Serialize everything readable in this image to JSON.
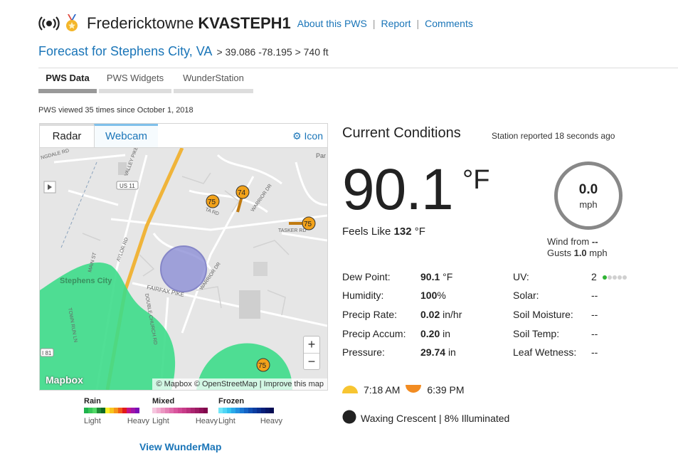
{
  "header": {
    "city": "Fredericktowne",
    "station_id": "KVASTEPH1",
    "links": [
      "About this PWS",
      "Report",
      "Comments"
    ]
  },
  "forecast": {
    "title": "Forecast for Stephens City, VA",
    "coords": "> 39.086 -78.195 > 740 ft"
  },
  "tabs": [
    "PWS Data",
    "PWS Widgets",
    "WunderStation"
  ],
  "viewed": "PWS viewed 35 times since October 1, 2018",
  "panel": {
    "tabs": [
      "Radar",
      "Webcam"
    ],
    "icon_label": "Icon",
    "map_labels": {
      "town": "Stephens City",
      "us11": "US 11",
      "i81": "I 81",
      "tasker": "TASKER RD",
      "warrior": "WARRIOR DR",
      "warrior2": "WARRIOR DR",
      "fairfax": "FAIRFAX PIKE",
      "valley": "VALLEY PIKE",
      "double": "DOUBLE CHURCH RD",
      "aylor": "AYLOR RD",
      "town_run": "TOWN RUN LN",
      "main": "MAIN ST",
      "par": "Par",
      "ngdale": "NGDALE RD",
      "td": "TA RD"
    },
    "markers": [
      "75",
      "74",
      "75",
      "75"
    ],
    "zoom_in": "+",
    "zoom_out": "−",
    "mapbox": "Mapbox",
    "attribution": "© Mapbox © OpenStreetMap | Improve this map"
  },
  "legend": {
    "groups": [
      {
        "title": "Rain",
        "low": "Light",
        "high": "Heavy",
        "colors": [
          "#1fb34c",
          "#37c657",
          "#51d866",
          "#1e8a35",
          "#0f6a24",
          "#f8ef2a",
          "#f7c41c",
          "#f59518",
          "#f05a17",
          "#e21a1a",
          "#c0148a",
          "#a013a8",
          "#7a0fb6"
        ]
      },
      {
        "title": "Mixed",
        "low": "Light",
        "high": "Heavy",
        "colors": [
          "#f6c6df",
          "#f1aed0",
          "#eb97c2",
          "#e581b6",
          "#df6baa",
          "#d9559e",
          "#d04793",
          "#c73a88",
          "#b92f7c",
          "#ab2570",
          "#9d1b64",
          "#8f1158",
          "#81074c"
        ]
      },
      {
        "title": "Frozen",
        "low": "Light",
        "high": "Heavy",
        "colors": [
          "#6fe6f8",
          "#50d6f5",
          "#35c4f0",
          "#2aa9e9",
          "#2290e0",
          "#1a78d4",
          "#1562c4",
          "#114eb2",
          "#0d3da0",
          "#0a2e8e",
          "#081f7a",
          "#061566",
          "#040c52"
        ]
      }
    ],
    "link": "View WunderMap"
  },
  "current": {
    "title": "Current Conditions",
    "reported": "Station reported 18 seconds ago",
    "temp": "90.1",
    "temp_unit": "°F",
    "feels_label": "Feels Like",
    "feels_value": "132",
    "feels_unit": "°F",
    "wind_speed": "0.0",
    "wind_unit": "mph",
    "wind_from_label": "Wind from",
    "wind_from_value": "--",
    "gusts_label": "Gusts",
    "gusts_value": "1.0",
    "gusts_unit": "mph"
  },
  "stats_left": [
    {
      "label": "Dew Point:",
      "value": "90.1",
      "unit": "°F"
    },
    {
      "label": "Humidity:",
      "value": "100",
      "unit": "%"
    },
    {
      "label": "Precip Rate:",
      "value": "0.02",
      "unit": "in/hr"
    },
    {
      "label": "Precip Accum:",
      "value": "0.20",
      "unit": "in"
    },
    {
      "label": "Pressure:",
      "value": "29.74",
      "unit": "in"
    }
  ],
  "stats_right": [
    {
      "label": "UV:",
      "value": "2"
    },
    {
      "label": "Solar:",
      "value": "--"
    },
    {
      "label": "Soil Moisture:",
      "value": "--"
    },
    {
      "label": "Soil Temp:",
      "value": "--"
    },
    {
      "label": "Leaf Wetness:",
      "value": "--"
    }
  ],
  "uv_level": 1,
  "uv_max": 5,
  "sun": {
    "rise": "7:18 AM",
    "set": "6:39 PM"
  },
  "moon": "Waxing Crescent | 8% Illuminated",
  "colors": {
    "link": "#1a75b8",
    "radar_green": "#3ddb8a",
    "marker": "#f2a21a"
  }
}
